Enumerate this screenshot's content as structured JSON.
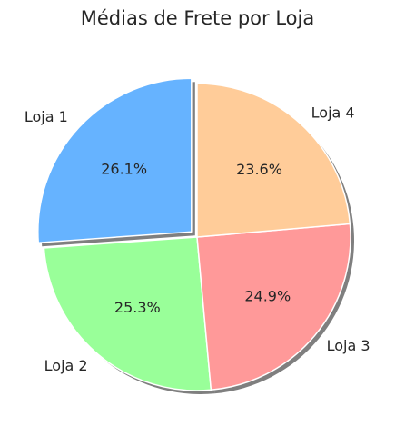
{
  "chart_data": {
    "type": "pie",
    "title": "Médias de Frete por Loja",
    "slices": [
      {
        "label": "Loja 1",
        "pct_label": "26.1%",
        "value": 26.1,
        "color": "#66b3ff",
        "exploded": true
      },
      {
        "label": "Loja 2",
        "pct_label": "25.3%",
        "value": 25.3,
        "color": "#99ff99",
        "exploded": false
      },
      {
        "label": "Loja 3",
        "pct_label": "24.9%",
        "value": 24.9,
        "color": "#ff9999",
        "exploded": false
      },
      {
        "label": "Loja 4",
        "pct_label": "23.6%",
        "value": 23.6,
        "color": "#ffcc99",
        "exploded": false
      }
    ],
    "start_angle_deg": 90,
    "direction": "counterclockwise",
    "shadow": true,
    "legend": "none"
  }
}
